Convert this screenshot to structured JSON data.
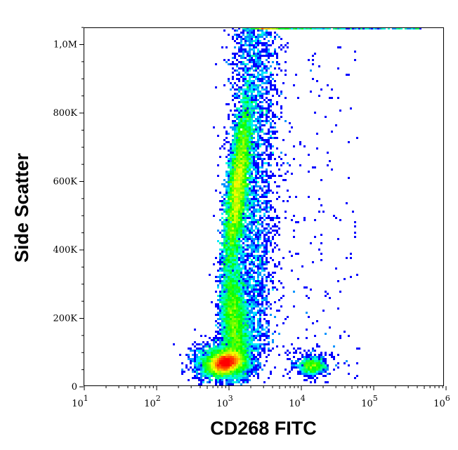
{
  "chart_data": {
    "type": "scatter",
    "subtype": "density-dot-plot",
    "xlabel": "CD268 FITC",
    "ylabel": "Side Scatter",
    "xscale": "log",
    "xlim": [
      10,
      1200000
    ],
    "ylim": [
      0,
      1050000
    ],
    "x_ticks": [
      {
        "value": 10,
        "base": "10",
        "exp": "1"
      },
      {
        "value": 100,
        "base": "10",
        "exp": "2"
      },
      {
        "value": 1000,
        "base": "10",
        "exp": "3"
      },
      {
        "value": 10000,
        "base": "10",
        "exp": "4"
      },
      {
        "value": 100000,
        "base": "10",
        "exp": "5"
      },
      {
        "value": 1000000,
        "base": "10",
        "exp": "6"
      }
    ],
    "y_ticks": [
      {
        "value": 0,
        "label": "0"
      },
      {
        "value": 200000,
        "label": "200K"
      },
      {
        "value": 400000,
        "label": "400K"
      },
      {
        "value": 600000,
        "label": "600K"
      },
      {
        "value": 800000,
        "label": "800K"
      },
      {
        "value": 1000000,
        "label": "1,0M"
      }
    ],
    "grid": false,
    "colormap": [
      "#0000ff",
      "#00ffff",
      "#00ff00",
      "#ffff00",
      "#ff0000"
    ],
    "populations": [
      {
        "x_center": 900,
        "y_center": 70000,
        "density": "high"
      },
      {
        "x_center": 1500,
        "y_center": 560000,
        "y_range": [
          400000,
          900000
        ],
        "density": "high"
      },
      {
        "x_center": 1150,
        "y_center": 220000,
        "density": "medium"
      },
      {
        "x_center": 14000,
        "y_center": 60000,
        "density": "medium"
      },
      {
        "x_range": [
          3000,
          100000
        ],
        "y_range": [
          0,
          1050000
        ],
        "density": "sparse"
      }
    ]
  }
}
